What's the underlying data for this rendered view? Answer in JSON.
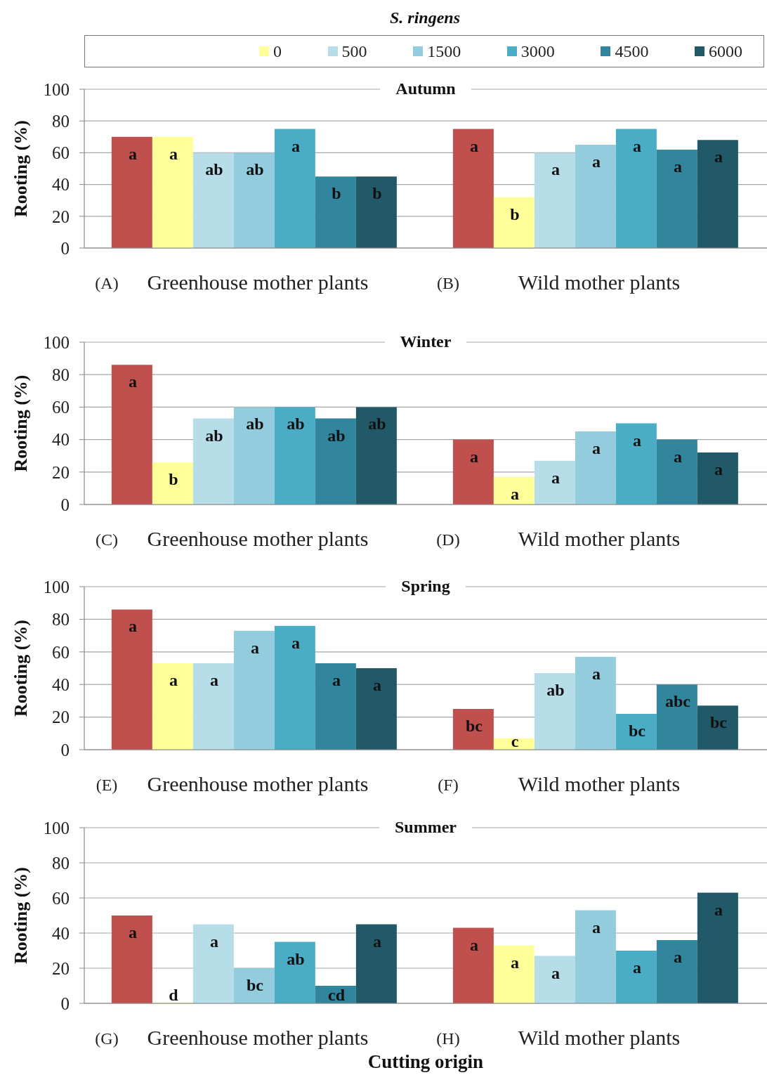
{
  "chart_data": [
    {
      "type": "bar",
      "title": "Autumn",
      "legend_title": "S. ringens",
      "legend": "top",
      "categories": [
        "Greenhouse mother plants",
        "Wild mother plants"
      ],
      "annotations": [
        "(A)",
        "(B)"
      ],
      "ylabel": "Rooting (%)",
      "ylim": [
        0,
        100
      ],
      "yticks": [
        0,
        20,
        40,
        60,
        80,
        100
      ],
      "grid": "y",
      "series": [
        {
          "color": "#c0504d",
          "values": [
            70,
            75
          ],
          "value_labels": [
            "a",
            "a"
          ]
        },
        {
          "name": "0",
          "color": "#ffff99",
          "values": [
            70,
            32
          ],
          "value_labels": [
            "a",
            "b"
          ]
        },
        {
          "name": "500",
          "color": "#b7dde8",
          "values": [
            60,
            60
          ],
          "value_labels": [
            "ab",
            "a"
          ]
        },
        {
          "name": "1500",
          "color": "#93cddd",
          "values": [
            60,
            65
          ],
          "value_labels": [
            "ab",
            "a"
          ]
        },
        {
          "name": "3000",
          "color": "#4bacc6",
          "values": [
            75,
            75
          ],
          "value_labels": [
            "a",
            "a"
          ]
        },
        {
          "name": "4500",
          "color": "#31859c",
          "values": [
            45,
            62
          ],
          "value_labels": [
            "b",
            "a"
          ]
        },
        {
          "name": "6000",
          "color": "#215968",
          "values": [
            45,
            68
          ],
          "value_labels": [
            "b",
            "a"
          ]
        }
      ]
    },
    {
      "type": "bar",
      "title": "Winter",
      "categories": [
        "Greenhouse mother plants",
        "Wild mother plants"
      ],
      "annotations": [
        "(C)",
        "(D)"
      ],
      "ylabel": "Rooting (%)",
      "ylim": [
        0,
        100
      ],
      "yticks": [
        0,
        20,
        40,
        60,
        80,
        100
      ],
      "grid": "y",
      "series": [
        {
          "color": "#c0504d",
          "values": [
            86,
            40
          ],
          "value_labels": [
            "a",
            "a"
          ]
        },
        {
          "color": "#ffff99",
          "values": [
            26,
            17
          ],
          "value_labels": [
            "b",
            "a"
          ]
        },
        {
          "color": "#b7dde8",
          "values": [
            53,
            27
          ],
          "value_labels": [
            "ab",
            "a"
          ]
        },
        {
          "color": "#93cddd",
          "values": [
            60,
            45
          ],
          "value_labels": [
            "ab",
            "a"
          ]
        },
        {
          "color": "#4bacc6",
          "values": [
            60,
            50
          ],
          "value_labels": [
            "ab",
            "a"
          ]
        },
        {
          "color": "#31859c",
          "values": [
            53,
            40
          ],
          "value_labels": [
            "ab",
            "a"
          ]
        },
        {
          "color": "#215968",
          "values": [
            60,
            32
          ],
          "value_labels": [
            "ab",
            "a"
          ]
        }
      ]
    },
    {
      "type": "bar",
      "title": "Spring",
      "categories": [
        "Greenhouse mother plants",
        "Wild mother plants"
      ],
      "annotations": [
        "(E)",
        "(F)"
      ],
      "ylabel": "Rooting (%)",
      "ylim": [
        0,
        100
      ],
      "yticks": [
        0,
        20,
        40,
        60,
        80,
        100
      ],
      "grid": "y",
      "series": [
        {
          "color": "#c0504d",
          "values": [
            86,
            25
          ],
          "value_labels": [
            "a",
            "bc"
          ]
        },
        {
          "color": "#ffff99",
          "values": [
            53,
            7
          ],
          "value_labels": [
            "a",
            "c"
          ]
        },
        {
          "color": "#b7dde8",
          "values": [
            53,
            47
          ],
          "value_labels": [
            "a",
            "ab"
          ]
        },
        {
          "color": "#93cddd",
          "values": [
            73,
            57
          ],
          "value_labels": [
            "a",
            "a"
          ]
        },
        {
          "color": "#4bacc6",
          "values": [
            76,
            22
          ],
          "value_labels": [
            "a",
            "bc"
          ]
        },
        {
          "color": "#31859c",
          "values": [
            53,
            40
          ],
          "value_labels": [
            "a",
            "abc"
          ]
        },
        {
          "color": "#215968",
          "values": [
            50,
            27
          ],
          "value_labels": [
            "a",
            "bc"
          ]
        }
      ]
    },
    {
      "type": "bar",
      "title": "Summer",
      "categories": [
        "Greenhouse mother plants",
        "Wild mother plants"
      ],
      "annotations": [
        "(G)",
        "(H)"
      ],
      "xlabel": "Cutting origin",
      "ylabel": "Rooting (%)",
      "ylim": [
        0,
        100
      ],
      "yticks": [
        0,
        20,
        40,
        60,
        80,
        100
      ],
      "grid": "y",
      "series": [
        {
          "color": "#c0504d",
          "values": [
            50,
            43
          ],
          "value_labels": [
            "a",
            "a"
          ]
        },
        {
          "color": "#ffff99",
          "values": [
            0,
            33
          ],
          "value_labels": [
            "d",
            "a"
          ]
        },
        {
          "color": "#b7dde8",
          "values": [
            45,
            27
          ],
          "value_labels": [
            "a",
            "a"
          ]
        },
        {
          "color": "#93cddd",
          "values": [
            20,
            53
          ],
          "value_labels": [
            "bc",
            "a"
          ]
        },
        {
          "color": "#4bacc6",
          "values": [
            35,
            30
          ],
          "value_labels": [
            "ab",
            "a"
          ]
        },
        {
          "color": "#31859c",
          "values": [
            10,
            36
          ],
          "value_labels": [
            "cd",
            "a"
          ]
        },
        {
          "color": "#215968",
          "values": [
            45,
            63
          ],
          "value_labels": [
            "a",
            "a"
          ]
        }
      ]
    }
  ]
}
